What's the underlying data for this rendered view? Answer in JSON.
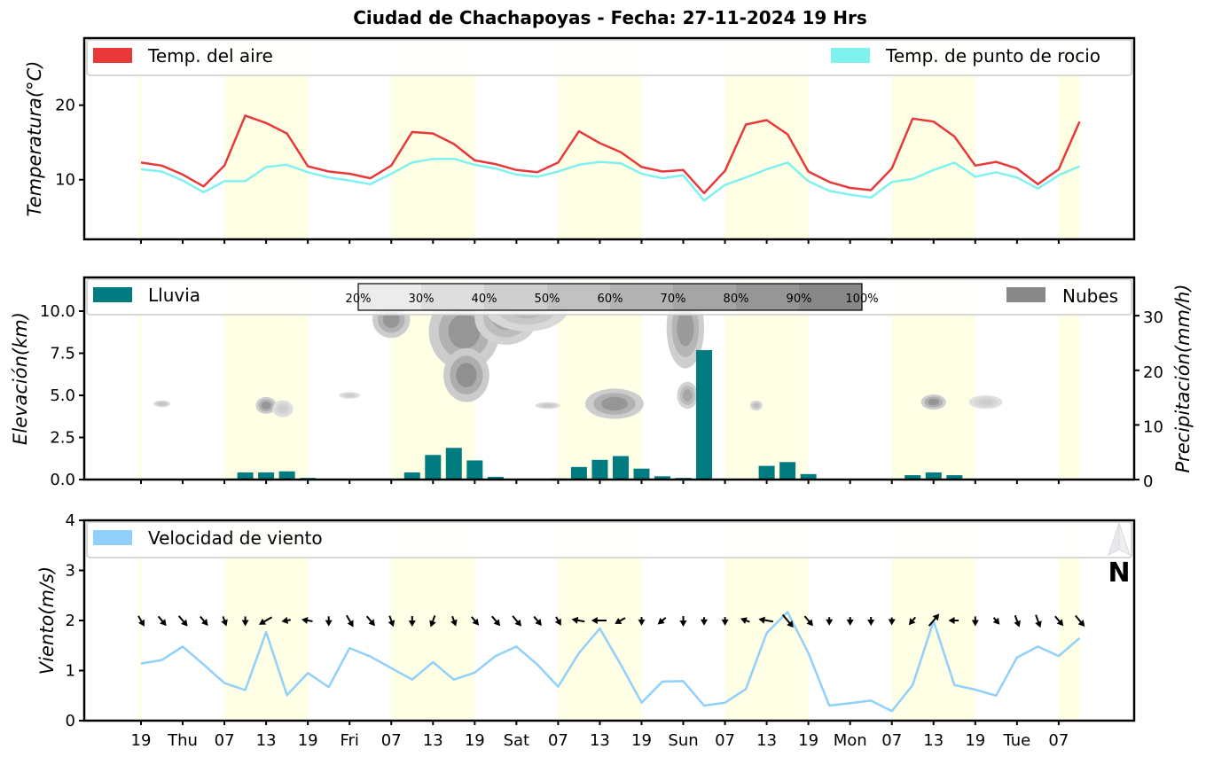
{
  "title": "Ciudad de Chachapoyas   -   Fecha: 27-11-2024 19 Hrs",
  "chart_data": [
    {
      "type": "line",
      "ylabel": "Temperatura(°C)",
      "ylim": [
        2,
        29
      ],
      "yticks": [
        10,
        20
      ],
      "x_step_hours": 3,
      "x_start": "19",
      "series": [
        {
          "name": "Temp. del aire",
          "color": "#e8383a",
          "values": [
            12.3,
            11.9,
            10.7,
            9.1,
            11.9,
            18.6,
            17.6,
            16.2,
            11.8,
            11.1,
            10.8,
            10.2,
            11.9,
            16.4,
            16.2,
            14.8,
            12.6,
            12.1,
            11.3,
            11.0,
            12.3,
            16.5,
            14.9,
            13.7,
            11.7,
            11.1,
            11.3,
            8.2,
            11.2,
            17.4,
            18.0,
            16.1,
            11.1,
            9.7,
            8.9,
            8.6,
            11.5,
            18.2,
            17.8,
            15.8,
            11.9,
            12.4,
            11.5,
            9.4,
            11.4,
            17.8
          ]
        },
        {
          "name": "Temp. de punto de rocio",
          "color": "#7ff2ef",
          "values": [
            11.4,
            11.1,
            9.9,
            8.3,
            9.8,
            9.8,
            11.7,
            12.0,
            11.0,
            10.3,
            9.9,
            9.4,
            10.8,
            12.3,
            12.8,
            12.8,
            12.0,
            11.5,
            10.7,
            10.4,
            11.1,
            12.0,
            12.4,
            12.2,
            10.8,
            10.2,
            10.6,
            7.2,
            9.3,
            10.3,
            11.4,
            12.3,
            9.8,
            8.5,
            8.0,
            7.6,
            9.7,
            10.1,
            11.3,
            12.3,
            10.4,
            11.0,
            10.3,
            8.8,
            10.6,
            11.8
          ]
        }
      ]
    },
    {
      "type": "bar",
      "ylabel": "Elevación(km)",
      "ylim": [
        0,
        12
      ],
      "yticks": [
        "0.0",
        "2.5",
        "5.0",
        "7.5",
        "10.0"
      ],
      "y2label": "Precipitación(mm/h)",
      "y2lim": [
        0,
        37
      ],
      "y2ticks": [
        0,
        10,
        20,
        30
      ],
      "series": [
        {
          "name": "Lluvia",
          "color": "#007b7f",
          "values": [
            0,
            0,
            0,
            0,
            0,
            1.3,
            1.3,
            1.5,
            0.3,
            0,
            0,
            0,
            0,
            1.3,
            4.5,
            5.8,
            3.5,
            0.5,
            0,
            0,
            0.2,
            2.3,
            3.6,
            4.3,
            2.0,
            0.6,
            0.3,
            23.7,
            0.1,
            0,
            2.5,
            3.2,
            1.0,
            0,
            0,
            0,
            0,
            0.8,
            1.3,
            0.8,
            0,
            0,
            0,
            0,
            0,
            0
          ]
        },
        {
          "name": "Nubes",
          "color": "#888888"
        }
      ],
      "colorbar_labels": [
        "20%",
        "30%",
        "40%",
        "50%",
        "60%",
        "70%",
        "80%",
        "90%",
        "100%"
      ]
    },
    {
      "type": "line",
      "ylabel": "Viento(m/s)",
      "ylim": [
        0,
        4
      ],
      "yticks": [
        0,
        1,
        2,
        3,
        4
      ],
      "series": [
        {
          "name": "Velocidad de viento",
          "color": "#90d0fb",
          "values": [
            1.14,
            1.21,
            1.48,
            1.12,
            0.75,
            0.61,
            1.77,
            0.51,
            0.95,
            0.67,
            1.45,
            1.28,
            1.05,
            0.82,
            1.17,
            0.82,
            0.96,
            1.29,
            1.48,
            1.12,
            0.68,
            1.35,
            1.84,
            1.12,
            0.36,
            0.78,
            0.79,
            0.3,
            0.36,
            0.63,
            1.75,
            2.17,
            1.35,
            0.3,
            0.35,
            0.4,
            0.19,
            0.71,
            1.99,
            0.71,
            0.62,
            0.5,
            1.26,
            1.48,
            1.29,
            1.65
          ]
        }
      ],
      "wind_direction_deg": [
        330,
        320,
        320,
        320,
        340,
        0,
        60,
        80,
        100,
        0,
        330,
        320,
        340,
        0,
        20,
        340,
        320,
        320,
        320,
        320,
        330,
        100,
        90,
        60,
        0,
        50,
        0,
        0,
        0,
        110,
        100,
        320,
        320,
        0,
        0,
        0,
        0,
        40,
        220,
        90,
        0,
        320,
        340,
        340,
        320,
        320
      ],
      "x_tick_labels": [
        "19",
        "Thu",
        "07",
        "13",
        "19",
        "Fri",
        "07",
        "13",
        "19",
        "Sat",
        "07",
        "13",
        "19",
        "Sun",
        "07",
        "13",
        "19",
        "Mon",
        "07",
        "13",
        "19",
        "Tue",
        "07"
      ],
      "north_label": "N"
    }
  ]
}
